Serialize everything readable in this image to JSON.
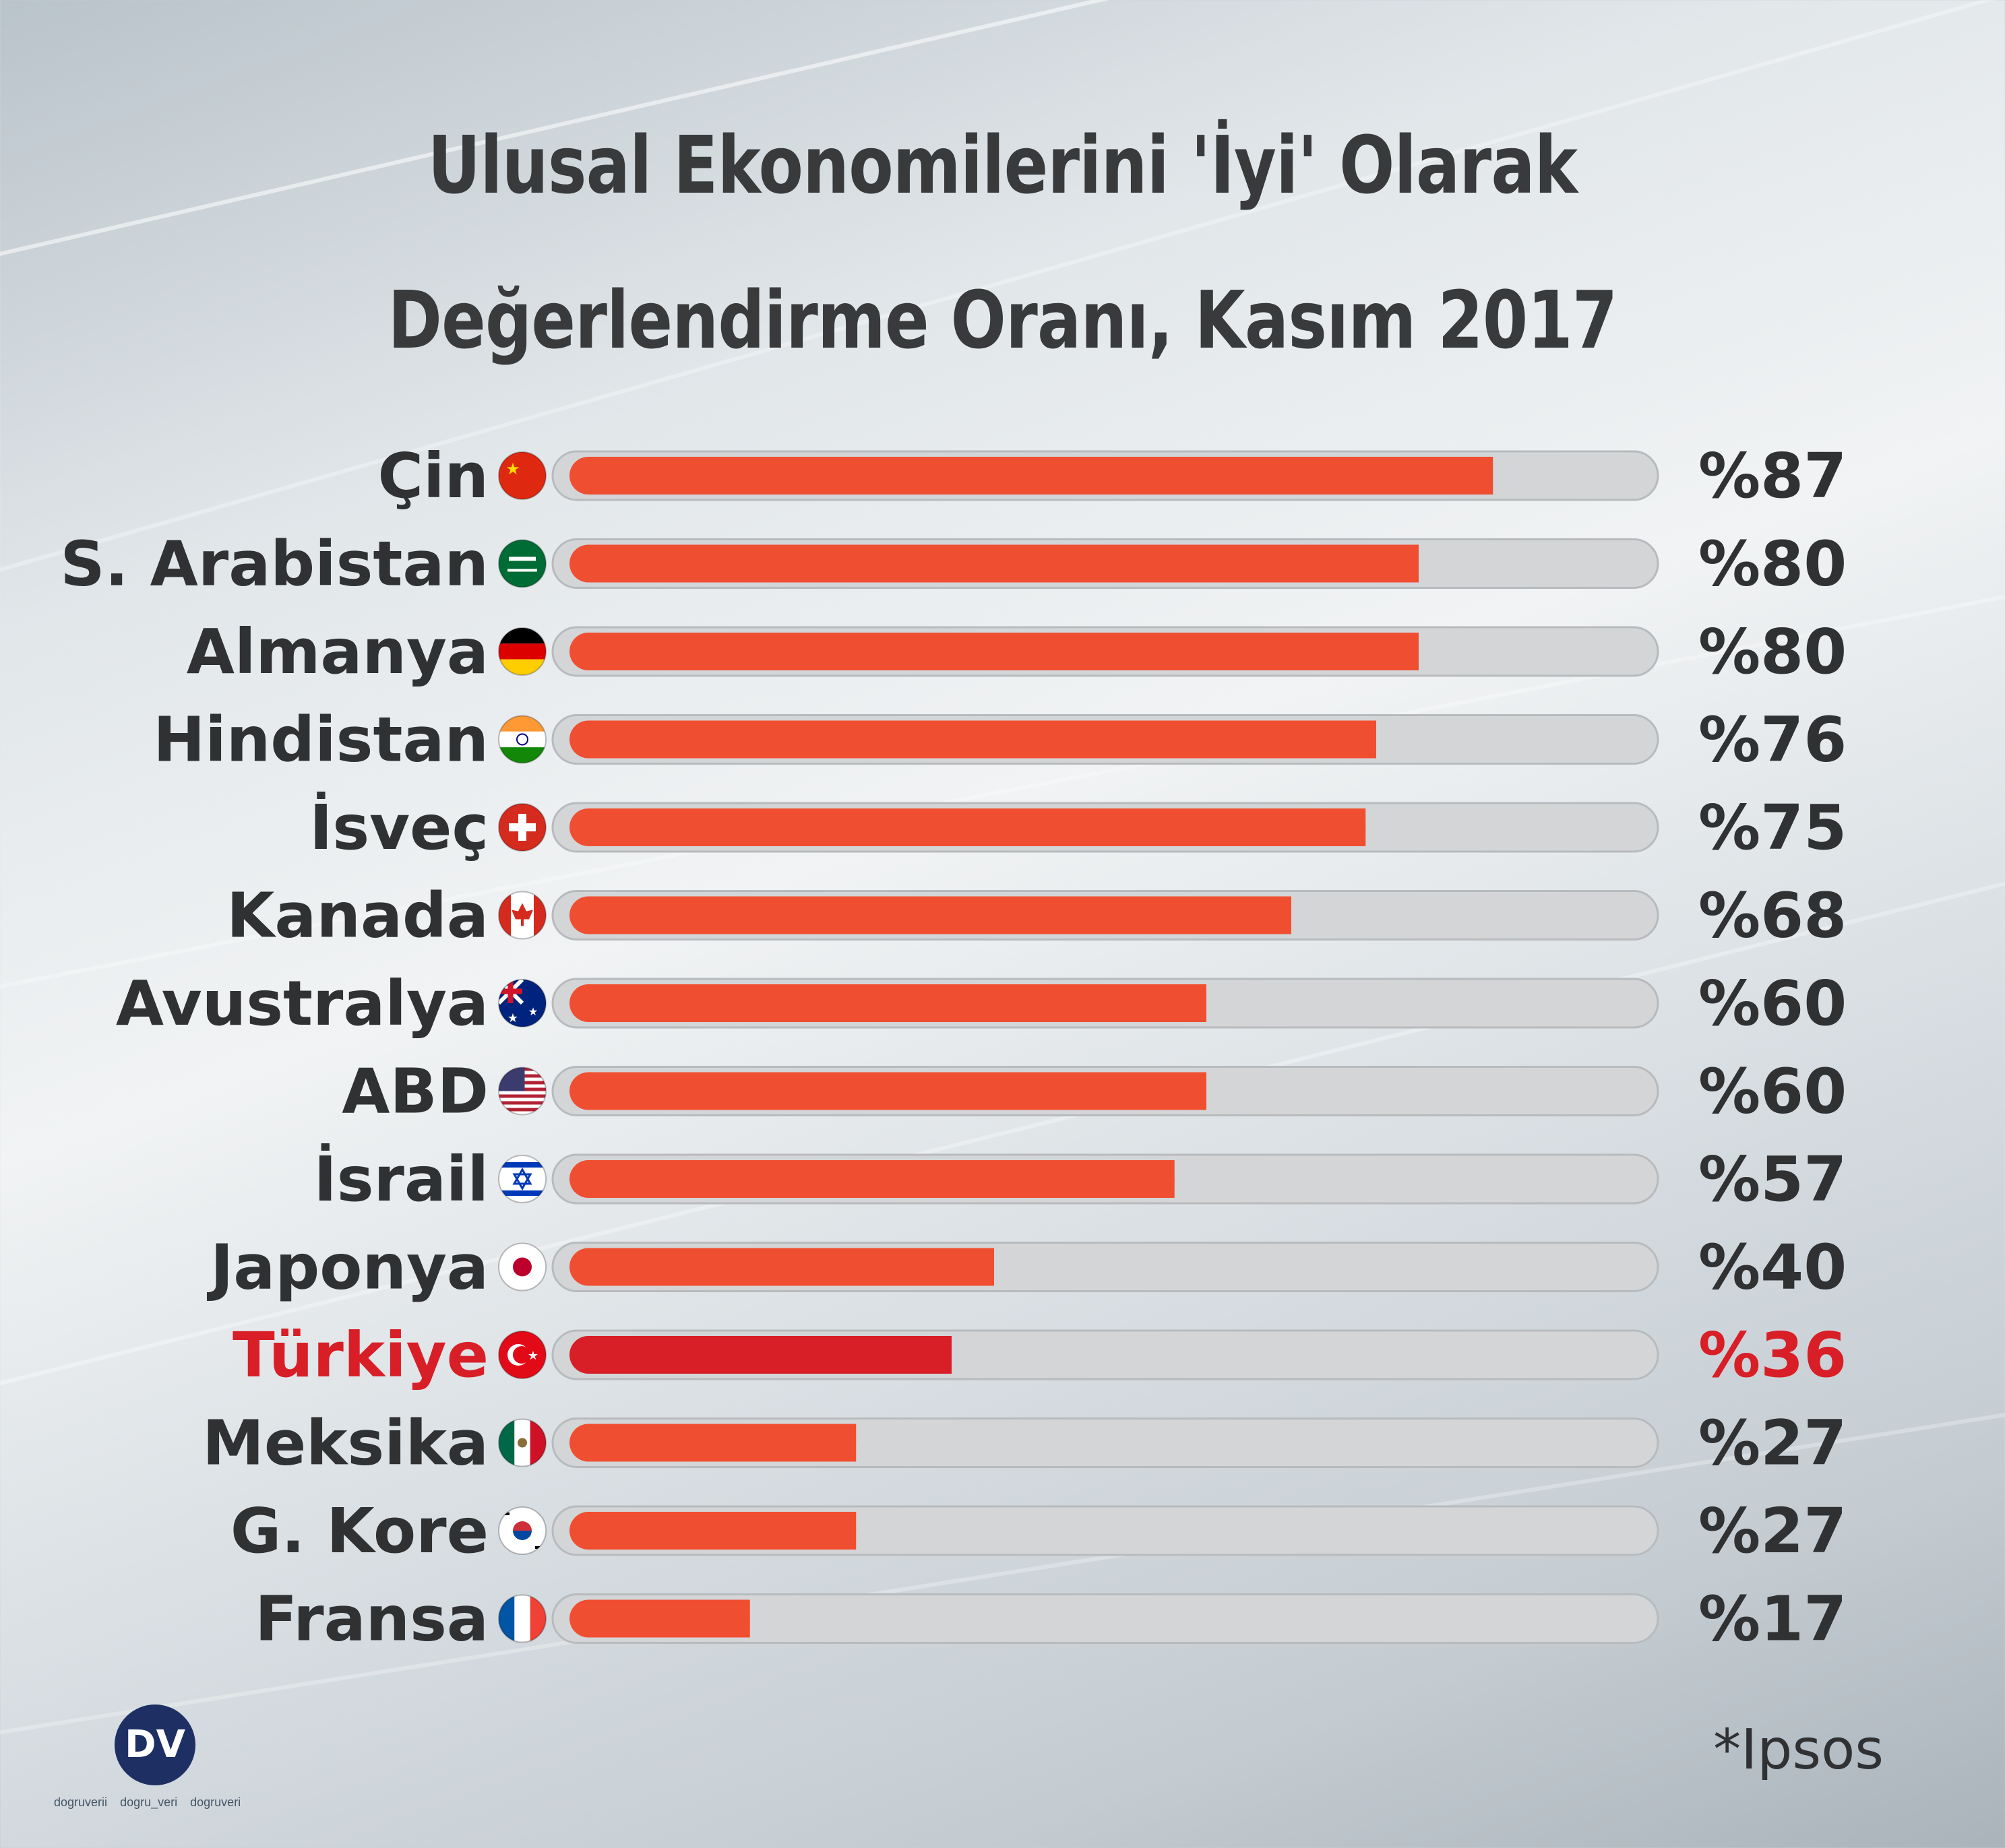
{
  "title_line1": "Ulusal Ekonomilerini 'İyi' Olarak",
  "title_line2": "Değerlendirme Oranı, Kasım 2017",
  "source": "*Ipsos",
  "logo_text": "DV",
  "social": {
    "facebook": "dogruverii",
    "twitter": "dogru_veri",
    "instagram": "dogruveri"
  },
  "colors": {
    "bar": "#f04e30",
    "highlight": "#d81e26",
    "track": "#d3d5d7",
    "text": "#2f3133"
  },
  "chart_data": {
    "type": "bar",
    "orientation": "horizontal",
    "title": "Ulusal Ekonomilerini 'İyi' Olarak Değerlendirme Oranı, Kasım 2017",
    "xlim": [
      0,
      100
    ],
    "highlight": "Türkiye",
    "categories": [
      "Çin",
      "S.  Arabistan",
      "Almanya",
      "Hindistan",
      "İsveç",
      "Kanada",
      "Avustralya",
      "ABD",
      "İsrail",
      "Japonya",
      "Türkiye",
      "Meksika",
      "G. Kore",
      "Fransa"
    ],
    "values": [
      87,
      80,
      80,
      76,
      75,
      68,
      60,
      60,
      57,
      40,
      36,
      27,
      27,
      17
    ],
    "value_labels": [
      "%87",
      "%80",
      "%80",
      "%76",
      "%75",
      "%68",
      "%60",
      "%60",
      "%57",
      "%40",
      "%36",
      "%27",
      "%27",
      "%17"
    ],
    "flags": [
      "china-flag-icon",
      "saudi-arabia-flag-icon",
      "germany-flag-icon",
      "india-flag-icon",
      "switzerland-flag-icon",
      "canada-flag-icon",
      "australia-flag-icon",
      "usa-flag-icon",
      "israel-flag-icon",
      "japan-flag-icon",
      "turkey-flag-icon",
      "mexico-flag-icon",
      "south-korea-flag-icon",
      "france-flag-icon"
    ]
  }
}
